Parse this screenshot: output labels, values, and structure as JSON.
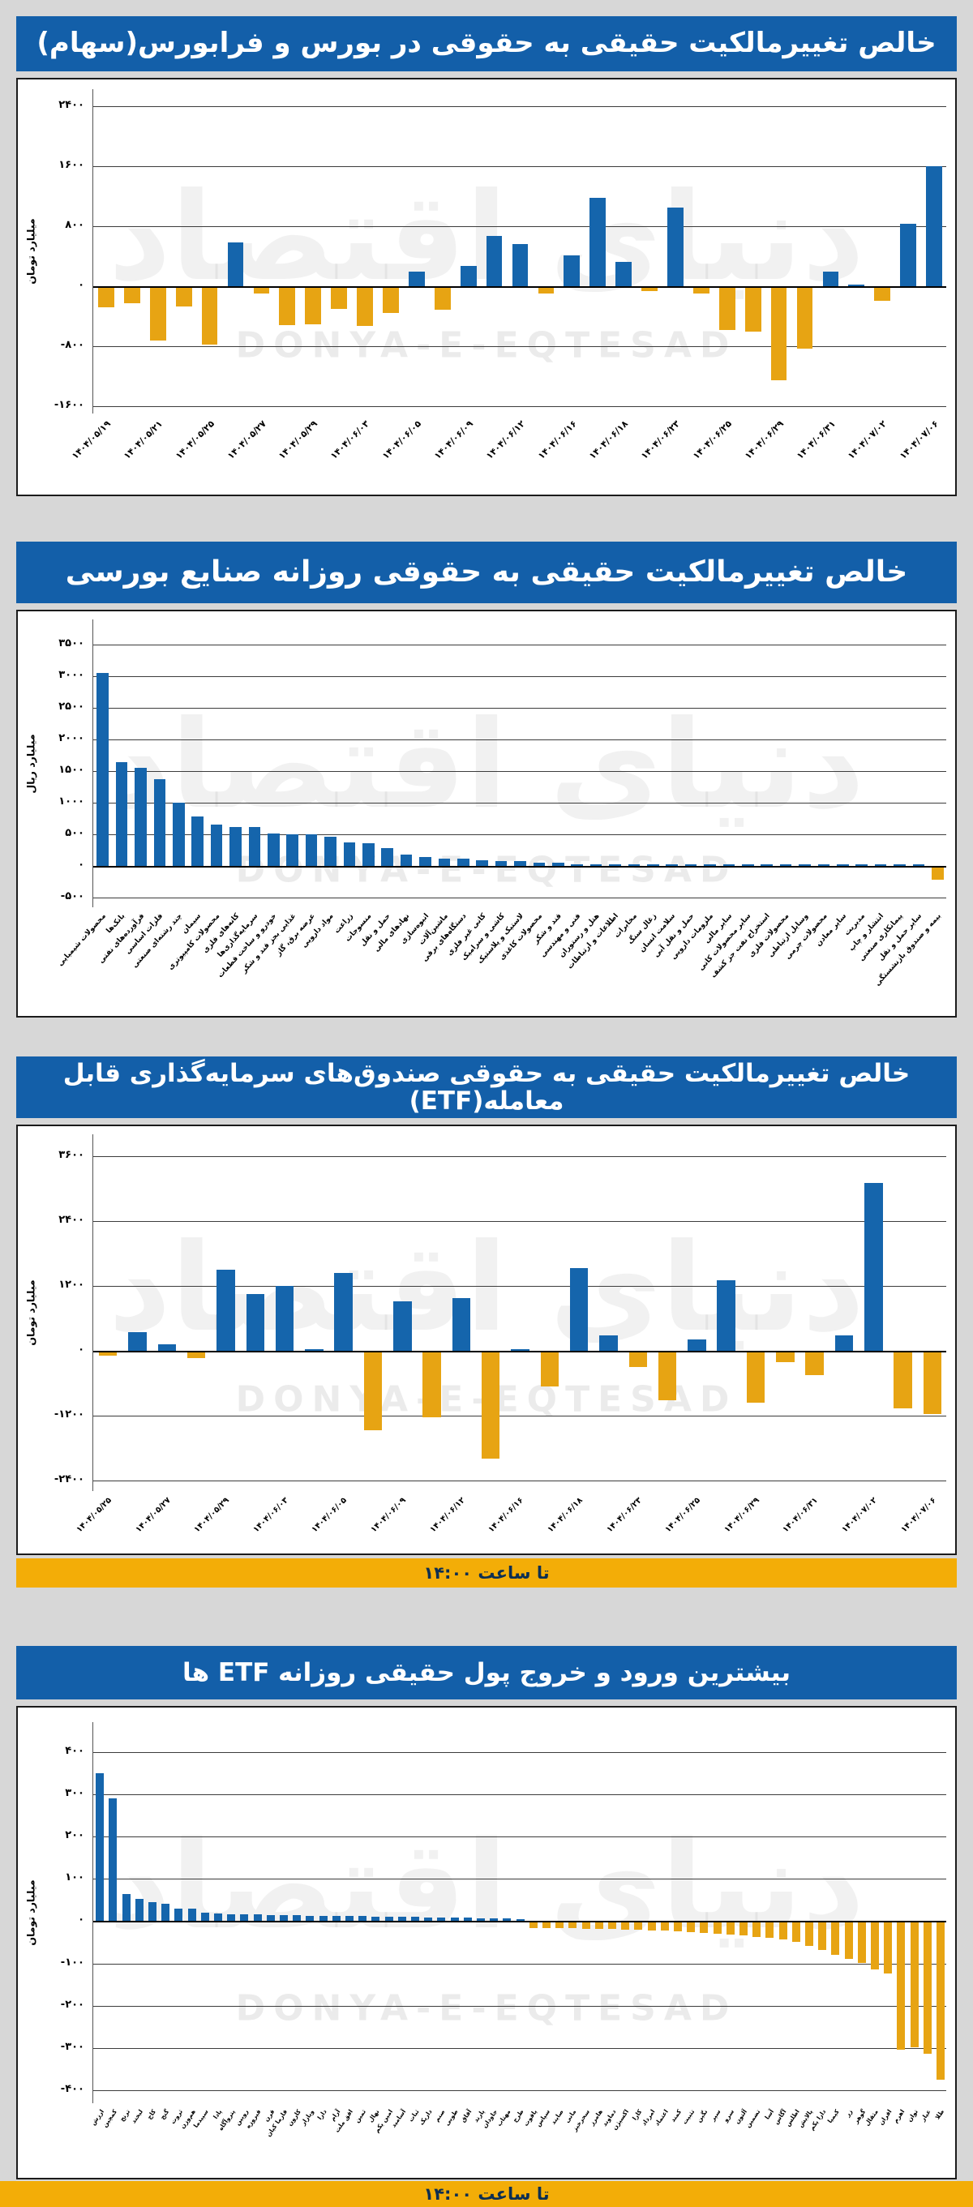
{
  "page": {
    "background": "#d7d7d7",
    "watermark_latin": "DONYA-E-EQTESAD",
    "watermark_persian": "دنیای اقتصاد",
    "footer_note": "تا ساعت ۱۴:۰۰",
    "colors": {
      "title_bar": "#135fa9",
      "positive_bar": "#1565ac",
      "negative_bar": "#e7a413",
      "footer_bar": "#f3ad07"
    }
  },
  "chart_data": [
    {
      "type": "bar",
      "title": "خالص تغییرمالکیت حقیقی به حقوقی در بورس و فرابورس(سهام)",
      "ylabel": "میلیارد تومان",
      "ylim": [
        -1700,
        2630
      ],
      "label_every": 2,
      "yticks": [
        {
          "label": "۲۴۰۰",
          "value": 2400
        },
        {
          "label": "۱۶۰۰",
          "value": 1600
        },
        {
          "label": "۸۰۰",
          "value": 800
        },
        {
          "label": "۰",
          "value": 0
        },
        {
          "label": "-۸۰۰",
          "value": -800
        },
        {
          "label": "-۱۶۰۰",
          "value": -1600
        }
      ],
      "categories": [
        "۱۴۰۴/۰۵/۱۹",
        "۱۴۰۴/۰۵/۲۱",
        "۱۴۰۴/۰۵/۲۵",
        "۱۴۰۴/۰۵/۲۷",
        "۱۴۰۴/۰۵/۲۹",
        "۱۴۰۴/۰۶/۰۳",
        "۱۴۰۴/۰۶/۰۵",
        "۱۴۰۴/۰۶/۰۹",
        "۱۴۰۴/۰۶/۱۲",
        "۱۴۰۴/۰۶/۱۶",
        "۱۴۰۴/۰۶/۱۸",
        "۱۴۰۴/۰۶/۲۳",
        "۱۴۰۴/۰۶/۲۵",
        "۱۴۰۴/۰۶/۲۹",
        "۱۴۰۴/۰۶/۳۱",
        "۱۴۰۴/۰۷/۰۲",
        "۱۴۰۴/۰۷/۰۶"
      ],
      "values": [
        -260,
        -200,
        -700,
        -250,
        -760,
        580,
        -75,
        -500,
        -490,
        -280,
        -510,
        -340,
        200,
        -290,
        270,
        670,
        560,
        -75,
        410,
        1180,
        330,
        -40,
        1050,
        -75,
        -560,
        -580,
        -1230,
        -810,
        200,
        20,
        -170,
        830,
        1600
      ],
      "colors": {
        "positive": "#1565ac",
        "negative": "#e7a413"
      }
    },
    {
      "type": "bar",
      "title": "خالص تغییرمالکیت حقیقی به حقوقی روزانه صنایع بورسی",
      "ylabel": "میلیارد ریال",
      "ylim": [
        -650,
        3900
      ],
      "label_every": 1,
      "yticks": [
        {
          "label": "۳۵۰۰",
          "value": 3500
        },
        {
          "label": "۳۰۰۰",
          "value": 3000
        },
        {
          "label": "۲۵۰۰",
          "value": 2500
        },
        {
          "label": "۲۰۰۰",
          "value": 2000
        },
        {
          "label": "۱۵۰۰",
          "value": 1500
        },
        {
          "label": "۱۰۰۰",
          "value": 1000
        },
        {
          "label": "۵۰۰",
          "value": 500
        },
        {
          "label": "۰",
          "value": 0
        },
        {
          "label": "-۵۰۰",
          "value": -500
        }
      ],
      "categories": [
        "محصولات شیمیایی",
        "بانک‌ها",
        "فرآورده‌های نفتی",
        "فلزات اساسی",
        "چند رشته‌ای صنعتی",
        "سیمان",
        "محصولات کامپیوتری",
        "کانه‌های فلزی",
        "سرمایه‌گذاری‌ها",
        "خودرو و ساخت قطعات",
        "غذایی بجز قند و شکر",
        "عرضه برق، گاز",
        "مواد دارویی",
        "زراعت",
        "منسوجات",
        "حمل و نقل",
        "نهادهای مالی",
        "انبوه‌سازی",
        "ماشین‌آلات",
        "دستگاه‌های برقی",
        "کانی غیر فلزی",
        "کاشی و سرامیک",
        "لاستیک و پلاستیک",
        "محصولات کاغذی",
        "قند و شکر",
        "فنی و مهندسی",
        "هتل و رستوران",
        "اطلاعات و ارتباطات",
        "مخابرات",
        "زغال سنگ",
        "سلامت انسان",
        "حمل و نقل آبی",
        "ملزومات دارویی",
        "سایر مالی",
        "سایر محصولات کانی",
        "استخراج نفت جز کشف",
        "محصولات فلزی",
        "وسایل ارتباطی",
        "محصولات چرمی",
        "سایر معادن",
        "مدیریت",
        "انتشار و چاپ",
        "پیمانکاری صنعتی",
        "سایر حمل و نقل",
        "بیمه و صندوق بازنشستگی"
      ],
      "values": [
        3050,
        1650,
        1560,
        1380,
        1000,
        790,
        660,
        615,
        615,
        520,
        510,
        510,
        460,
        380,
        360,
        290,
        185,
        150,
        115,
        115,
        90,
        75,
        75,
        60,
        60,
        35,
        30,
        30,
        25,
        25,
        20,
        20,
        15,
        15,
        12,
        10,
        10,
        8,
        6,
        5,
        4,
        3,
        2,
        2,
        -185
      ],
      "colors": {
        "positive": "#1565ac",
        "negative": "#e7a413"
      }
    },
    {
      "type": "bar",
      "title": "خالص تغییرمالکیت حقیقی به حقوقی صندوق‌های سرمایه‌گذاری قابل معامله(ETF)",
      "ylabel": "میلیارد تومان",
      "ylim": [
        -2600,
        4000
      ],
      "label_every": 2,
      "footer": "تا ساعت ۱۴:۰۰",
      "yticks": [
        {
          "label": "۳۶۰۰",
          "value": 3600
        },
        {
          "label": "۲۴۰۰",
          "value": 2400
        },
        {
          "label": "۱۲۰۰",
          "value": 1200
        },
        {
          "label": "۰",
          "value": 0
        },
        {
          "label": "-۱۲۰۰",
          "value": -1200
        },
        {
          "label": "-۲۴۰۰",
          "value": -2400
        }
      ],
      "categories": [
        "۱۴۰۴/۰۵/۲۵",
        "۱۴۰۴/۰۵/۲۷",
        "۱۴۰۴/۰۵/۲۹",
        "۱۴۰۴/۰۶/۰۳",
        "۱۴۰۴/۰۶/۰۵",
        "۱۴۰۴/۰۶/۰۹",
        "۱۴۰۴/۰۶/۱۲",
        "۱۴۰۴/۰۶/۱۶",
        "۱۴۰۴/۰۶/۱۸",
        "۱۴۰۴/۰۶/۲۳",
        "۱۴۰۴/۰۶/۲۵",
        "۱۴۰۴/۰۶/۲۹",
        "۱۴۰۴/۰۶/۳۱",
        "۱۴۰۴/۰۷/۰۲",
        "۱۴۰۴/۰۷/۰۶"
      ],
      "values": [
        -70,
        340,
        110,
        -110,
        1500,
        1050,
        1190,
        30,
        1440,
        -1440,
        910,
        -1200,
        970,
        -1970,
        20,
        -640,
        1530,
        280,
        -270,
        -890,
        200,
        1300,
        -930,
        -180,
        -420,
        280,
        3100,
        -1040,
        -1150
      ],
      "colors": {
        "positive": "#1565ac",
        "negative": "#e7a413"
      }
    },
    {
      "type": "bar",
      "title": "بیشترین ورود و خروج پول حقیقی روزانه ETF ها",
      "ylabel": "میلیارد تومان",
      "ylim": [
        -430,
        470
      ],
      "label_every": 1,
      "footer": "تا ساعت ۱۴:۰۰",
      "yticks": [
        {
          "label": "۴۰۰",
          "value": 400
        },
        {
          "label": "۳۰۰",
          "value": 300
        },
        {
          "label": "۲۰۰",
          "value": 200
        },
        {
          "label": "۱۰۰",
          "value": 100
        },
        {
          "label": "۰",
          "value": 0
        },
        {
          "label": "-۱۰۰",
          "value": -100
        },
        {
          "label": "-۲۰۰",
          "value": -200
        },
        {
          "label": "-۳۰۰",
          "value": -300
        },
        {
          "label": "-۴۰۰",
          "value": -400
        }
      ],
      "categories": [
        "ارزش",
        "کمچین",
        "ترنج",
        "لبخند",
        "کاج",
        "گنج",
        "ثروت",
        "هم‌وزن",
        "سپیدما",
        "پادا",
        "پتروآگاه",
        "رویین",
        "فیروزه",
        "قرن",
        "فارما کیان",
        "کارون",
        "وبازار",
        "دارا",
        "آرام",
        "افق ملت",
        "ثمین",
        "نهال",
        "امین یکم",
        "آسامید",
        "ثبات",
        "داریک",
        "صنم",
        "طوبی",
        "آفاق",
        "پارند",
        "جاودان",
        "مهتاب",
        "طرح",
        "یاقوت",
        "سپاس",
        "صایند",
        "مانی",
        "سحرخیز",
        "هامرز",
        "دماوند",
        "اکسیژن",
        "کارا",
        "امرداد",
        "اعتماد",
        "کمند",
        "تثبیت",
        "نگین",
        "سپر",
        "سرو",
        "آلتون",
        "تضمین",
        "آسا",
        "آگاس",
        "اطلس",
        "پالایش",
        "دارا یکم",
        "کیمیا",
        "زر",
        "گوهر",
        "مثقال",
        "افران",
        "اهرم",
        "توان",
        "عیار",
        "طلا"
      ],
      "values": [
        350,
        290,
        65,
        53,
        45,
        42,
        30,
        29,
        20,
        18,
        17,
        17,
        16,
        15,
        14,
        14,
        13,
        13,
        12,
        12,
        12,
        11,
        11,
        10,
        10,
        9,
        9,
        8,
        8,
        7,
        7,
        6,
        5,
        -12,
        -13,
        -13,
        -13,
        -14,
        -14,
        -15,
        -16,
        -17,
        -18,
        -19,
        -20,
        -22,
        -24,
        -26,
        -28,
        -30,
        -33,
        -36,
        -40,
        -45,
        -55,
        -65,
        -75,
        -85,
        -95,
        -110,
        -120,
        -300,
        -295,
        -310,
        -370
      ],
      "colors": {
        "positive": "#1565ac",
        "negative": "#e7a413"
      }
    }
  ]
}
